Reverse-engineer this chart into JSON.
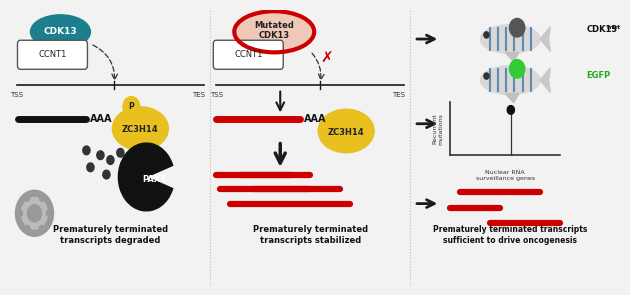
{
  "bg_color": "#f2f2f2",
  "teal_color": "#1b7f8e",
  "gold_color": "#e8c020",
  "red_color": "#cc0000",
  "dark_color": "#1a1a1a",
  "panel1_caption": "Prematurely terminated\ntranscripts degraded",
  "panel2_caption": "Prematurely terminated\ntranscripts stabilized",
  "panel3_caption": "Prematurely terminated transcripts\nsufficient to drive oncogenesis",
  "cdk13_label": "CDK13",
  "ccnt1_label": "CCNT1",
  "mutated_label": "Mutated\nCDK13",
  "zc3h14_label": "ZC3H14",
  "paxt_label": "PAXT",
  "aaa_label": "AAA",
  "p_label": "P",
  "tss_label": "TSS",
  "tes_label": "TES",
  "egfp_label": "EGFP",
  "cdk13mut_label": "CDK13",
  "recurrent_label": "Recurrent\nmutations",
  "surveillance_label": "Nuclear RNA\nsurveillance genes"
}
